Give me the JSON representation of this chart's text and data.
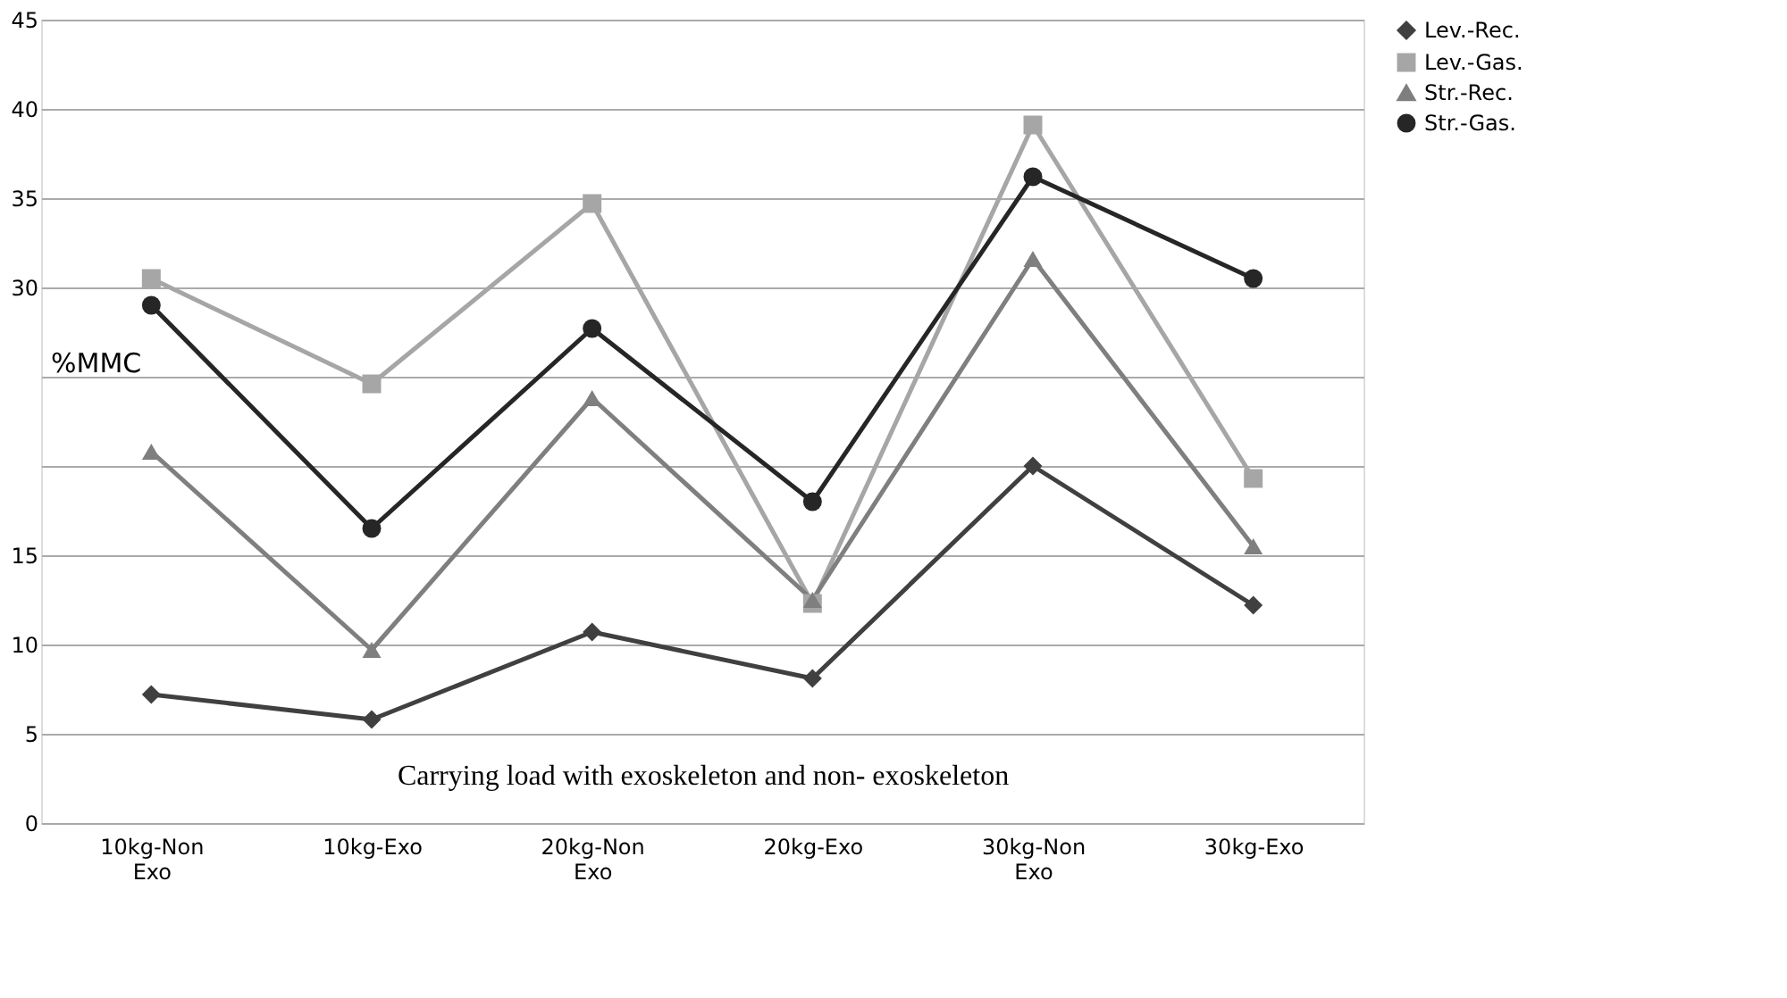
{
  "chart_data": {
    "type": "line",
    "xlabel": "Carrying load with exoskeleton and non- exoskeleton",
    "ylabel": "%MMC",
    "categories": [
      "10kg-Non Exo",
      "10kg-Exo",
      "20kg-Non Exo",
      "20kg-Exo",
      "30kg-Non Exo",
      "30kg-Exo"
    ],
    "series": [
      {
        "name": "Lev.-Rec.",
        "color": "#404040",
        "marker": "diamond",
        "values": [
          7.2,
          5.8,
          10.7,
          8.1,
          20.0,
          12.2
        ]
      },
      {
        "name": "Lev.-Gas.",
        "color": "#a6a6a6",
        "marker": "square",
        "values": [
          30.5,
          24.6,
          34.7,
          12.3,
          39.1,
          19.3
        ]
      },
      {
        "name": "Str.-Rec.",
        "color": "#7f7f7f",
        "marker": "triangle",
        "values": [
          20.8,
          9.7,
          23.8,
          12.5,
          31.6,
          15.5
        ]
      },
      {
        "name": "Str.-Gas.",
        "color": "#262626",
        "marker": "circle",
        "values": [
          29.0,
          16.5,
          27.7,
          18.0,
          36.2,
          30.5
        ]
      }
    ],
    "ylim": [
      0,
      45
    ],
    "yticks": [
      0,
      5,
      10,
      15,
      {
        "value": 20,
        "label": null
      },
      {
        "value": 25,
        "label": null
      },
      30,
      35,
      40,
      45
    ],
    "grid": "y",
    "legend": "right",
    "line_style": "solid"
  }
}
